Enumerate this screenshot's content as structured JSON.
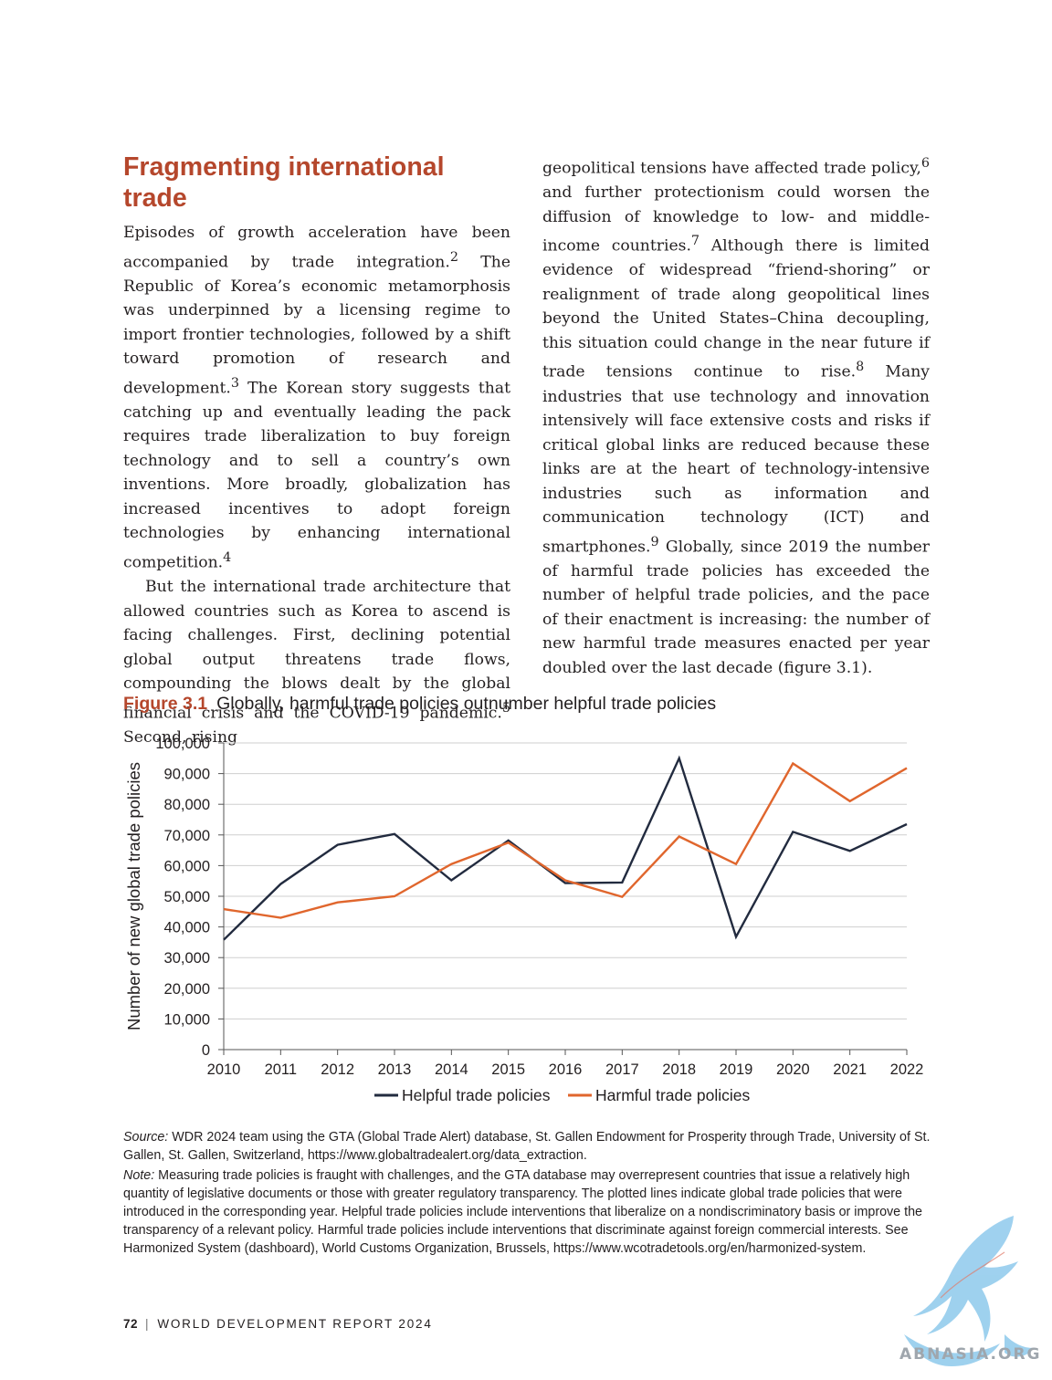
{
  "left_column": {
    "heading": "Fragmenting international trade",
    "para1_a": "Episodes of growth acceleration have been accompanied by trade integration.",
    "fn2": "2",
    "para1_b": " The Republic of Korea’s economic metamorphosis was underpinned by a licensing regime to import frontier technologies, followed by a shift toward promotion of research and development.",
    "fn3": "3",
    "para1_c": " The Korean story suggests that catching up and eventually leading the pack requires trade liberalization to buy foreign technology and to sell a country’s own inventions. More broadly, globalization has increased incentives to adopt foreign technologies by enhancing international competition.",
    "fn4": "4",
    "para2_a": "But the international trade architecture that allowed countries such as Korea to ascend is facing challenges. First, declining potential global output threatens trade flows, compounding the blows dealt by the global financial crisis and the COVID-19 pandemic.",
    "fn5": "5",
    "para2_b": " Second, rising"
  },
  "right_column": {
    "text_a": "geopolitical tensions have affected trade policy,",
    "fn6": "6",
    "text_b": " and further protectionism could worsen the diffusion of knowledge to low- and middle-income countries.",
    "fn7": "7",
    "text_c": " Although there is limited evidence of widespread “friend-shoring” or realignment of trade along geopolitical lines beyond the United States–China decoupling, this situation could change in the near future if trade tensions continue to rise.",
    "fn8": "8",
    "text_d": " Many industries that use technology and innovation intensively will face extensive costs and risks if critical global links are reduced because these links are at the heart of technology-intensive industries such as information and communication technology (ICT) and smartphones.",
    "fn9": "9",
    "text_e": " Globally, since 2019 the number of harmful trade policies has exceeded the number of helpful trade policies, and the pace of their enactment is increasing: the number of new harmful trade measures enacted per year doubled over the last decade (figure 3.1)."
  },
  "figure": {
    "label": "Figure 3.1",
    "title": "Globally, harmful trade policies outnumber helpful trade policies"
  },
  "chart_data": {
    "type": "line",
    "x": [
      2010,
      2011,
      2012,
      2013,
      2014,
      2015,
      2016,
      2017,
      2018,
      2019,
      2020,
      2021,
      2022
    ],
    "series": [
      {
        "name": "Helpful trade policies",
        "color": "#222b3f",
        "values": [
          35800,
          54000,
          66800,
          70300,
          55200,
          68200,
          54300,
          54500,
          95000,
          36800,
          71000,
          64800,
          73500
        ]
      },
      {
        "name": "Harmful trade policies",
        "color": "#e0662d",
        "values": [
          45800,
          43000,
          48000,
          50000,
          60500,
          67500,
          55200,
          49800,
          69500,
          60500,
          93300,
          81000,
          91800
        ]
      }
    ],
    "ylabel": "Number of new global trade policies",
    "ylim": [
      0,
      100000
    ],
    "yticks": [
      0,
      10000,
      20000,
      30000,
      40000,
      50000,
      60000,
      70000,
      80000,
      90000,
      100000
    ],
    "ytick_labels": [
      "0",
      "10,000",
      "20,000",
      "30,000",
      "40,000",
      "50,000",
      "60,000",
      "70,000",
      "80,000",
      "90,000",
      "100,000"
    ],
    "grid": true,
    "legend_position": "bottom"
  },
  "notes": {
    "source_label": "Source:",
    "source_text": "WDR 2024 team using the GTA (Global Trade Alert) database, St. Gallen Endowment for Prosperity through Trade, University of St. Gallen, St. Gallen, Switzerland, https://www.globaltradealert.org/data_extraction.",
    "note_label": "Note:",
    "note_text": "Measuring trade policies is fraught with challenges, and the GTA database may overrepresent countries that issue a relatively high quantity of legislative documents or those with greater regulatory transparency. The plotted lines indicate global trade policies that were introduced in the corresponding year. Helpful trade policies include interventions that liberalize on a nondiscriminatory basis or improve the transparency of a relevant policy. Harmful trade policies include interventions that discriminate against foreign commercial interests. See Harmonized System (dashboard), World Customs Organization, Brussels, https://www.wcotradetools.org/en/harmonized-system."
  },
  "footer": {
    "page_number": "72",
    "separator": "|",
    "running_title": "WORLD DEVELOPMENT REPORT 2024"
  },
  "watermark": {
    "text": "ABNASIA.ORG",
    "icon": "dragon-logo-icon",
    "color": "#8ec9ec"
  }
}
